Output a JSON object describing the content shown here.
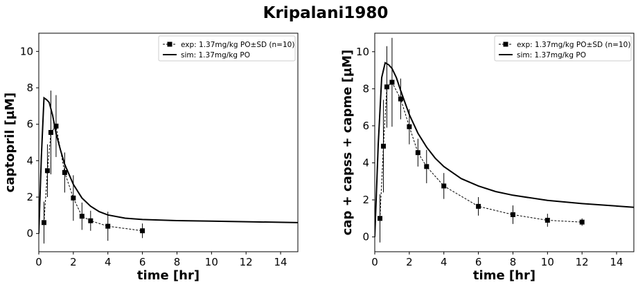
{
  "figure_title": "Kripalani1980",
  "chart_data": [
    {
      "type": "line",
      "xlabel": "time [hr]",
      "ylabel": "captopril [µM]",
      "xlim": [
        0,
        15
      ],
      "ylim": [
        -1,
        11
      ],
      "xticks": [
        "0",
        "2",
        "4",
        "6",
        "8",
        "10",
        "12",
        "14"
      ],
      "yticks": [
        "0",
        "2",
        "4",
        "6",
        "8",
        "10"
      ],
      "legend_position": "top-right",
      "series": [
        {
          "name": "exp: 1.37mg/kg PO±SD (n=10)",
          "style": "dashed-markers-errorbars",
          "x": [
            0.3,
            0.5,
            0.7,
            1.0,
            1.5,
            2.0,
            2.5,
            3.0,
            4.0,
            6.0
          ],
          "y": [
            0.6,
            3.45,
            5.55,
            5.9,
            3.35,
            1.95,
            0.95,
            0.7,
            0.4,
            0.15
          ],
          "sd": [
            1.15,
            1.45,
            2.3,
            1.7,
            1.1,
            1.25,
            0.75,
            0.55,
            0.8,
            0.4
          ]
        },
        {
          "name": "sim: 1.37mg/kg PO",
          "style": "solid",
          "x": [
            0,
            0.15,
            0.3,
            0.45,
            0.6,
            0.8,
            1.0,
            1.25,
            1.5,
            2.0,
            2.5,
            3.0,
            3.5,
            4.0,
            5.0,
            6.0,
            8.0,
            10.0,
            12.0,
            15.0
          ],
          "y": [
            0,
            4.2,
            7.45,
            7.35,
            7.2,
            6.5,
            5.5,
            4.6,
            3.8,
            2.7,
            1.95,
            1.5,
            1.2,
            1.02,
            0.84,
            0.77,
            0.71,
            0.68,
            0.65,
            0.6
          ]
        }
      ]
    },
    {
      "type": "line",
      "xlabel": "time [hr]",
      "ylabel": "cap + capss + capme [µM]",
      "xlim": [
        0,
        15
      ],
      "ylim": [
        -0.8,
        11
      ],
      "xticks": [
        "0",
        "2",
        "4",
        "6",
        "8",
        "10",
        "12",
        "14"
      ],
      "yticks": [
        "0",
        "2",
        "4",
        "6",
        "8",
        "10"
      ],
      "legend_position": "top-right",
      "series": [
        {
          "name": "exp: 1.37mg/kg PO±SD (n=10)",
          "style": "dashed-markers-errorbars",
          "x": [
            0.3,
            0.5,
            0.7,
            1.0,
            1.5,
            2.0,
            2.5,
            3.0,
            4.0,
            6.0,
            8.0,
            10.0,
            12.0
          ],
          "y": [
            1.0,
            4.9,
            8.1,
            8.35,
            7.45,
            5.95,
            4.55,
            3.8,
            2.75,
            1.65,
            1.2,
            0.9,
            0.8
          ],
          "sd": [
            1.3,
            2.5,
            2.2,
            2.4,
            1.1,
            0.95,
            0.75,
            0.9,
            0.7,
            0.5,
            0.5,
            0.35,
            0.2
          ]
        },
        {
          "name": "sim: 1.37mg/kg PO",
          "style": "solid",
          "x": [
            0,
            0.2,
            0.4,
            0.6,
            0.8,
            1.0,
            1.25,
            1.5,
            2.0,
            2.5,
            3.0,
            3.5,
            4.0,
            5.0,
            6.0,
            7.0,
            8.0,
            10.0,
            12.0,
            15.0
          ],
          "y": [
            0,
            5.0,
            8.6,
            9.4,
            9.3,
            9.1,
            8.6,
            7.9,
            6.6,
            5.6,
            4.85,
            4.25,
            3.8,
            3.15,
            2.75,
            2.45,
            2.25,
            1.97,
            1.8,
            1.6
          ]
        }
      ]
    }
  ]
}
